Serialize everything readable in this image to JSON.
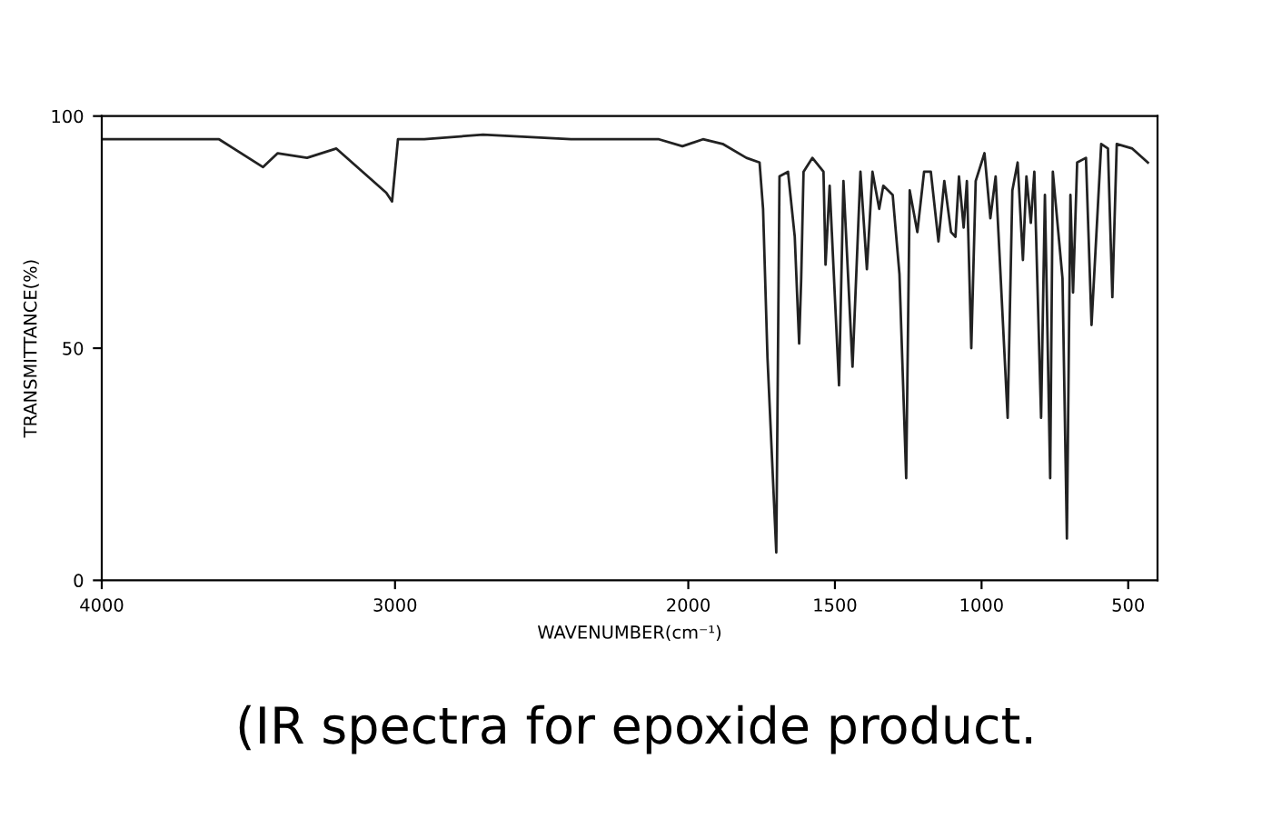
{
  "chart_data": {
    "type": "line",
    "xlabel": "WAVENUMBER(cm⁻¹)",
    "ylabel": "TRANSMITTANCE(%)",
    "annotations": [
      "(IR spectra for epoxide product."
    ],
    "xlim": [
      4000,
      400
    ],
    "xticks": [
      4000,
      3000,
      2000,
      1500,
      1000,
      500
    ],
    "ylim": [
      0,
      100
    ],
    "yticks": [
      0,
      50,
      100
    ],
    "grid": false,
    "legend": false,
    "marker": "none",
    "line_style": "solid",
    "x": [
      4000,
      3600,
      3450,
      3400,
      3300,
      3200,
      3030,
      3010,
      2990,
      2900,
      2700,
      2400,
      2100,
      2020,
      1950,
      1883,
      1802,
      1757,
      1745,
      1730,
      1700,
      1689,
      1660,
      1637,
      1622,
      1615,
      1607,
      1577,
      1539,
      1532,
      1518,
      1486,
      1471,
      1440,
      1413,
      1391,
      1372,
      1349,
      1335,
      1303,
      1280,
      1257,
      1245,
      1219,
      1196,
      1173,
      1147,
      1127,
      1104,
      1089,
      1077,
      1061,
      1050,
      1035,
      1020,
      990,
      970,
      952,
      911,
      895,
      877,
      859,
      847,
      832,
      820,
      797,
      784,
      766,
      757,
      724,
      709,
      697,
      688,
      674,
      644,
      625,
      592,
      569,
      554,
      539,
      486,
      433
    ],
    "series": [
      {
        "color": "#222222",
        "values": [
          95,
          95,
          89,
          92,
          91,
          93,
          83.5,
          81.6,
          95,
          95,
          96,
          95,
          95,
          93.5,
          95,
          94,
          91,
          90,
          80,
          48,
          6,
          87,
          88,
          74,
          51,
          65,
          88,
          91,
          88,
          68,
          85,
          42,
          86,
          46,
          88,
          67,
          88,
          80,
          85,
          83,
          66,
          22,
          84,
          75,
          88,
          88,
          73,
          86,
          75,
          74,
          87,
          76,
          86,
          50,
          86,
          92,
          78,
          87,
          35,
          84,
          90,
          69,
          87,
          77,
          88,
          35,
          83,
          22,
          88,
          65,
          9,
          83,
          62,
          90,
          91,
          55,
          94,
          93,
          61,
          94,
          93,
          90
        ]
      }
    ]
  }
}
